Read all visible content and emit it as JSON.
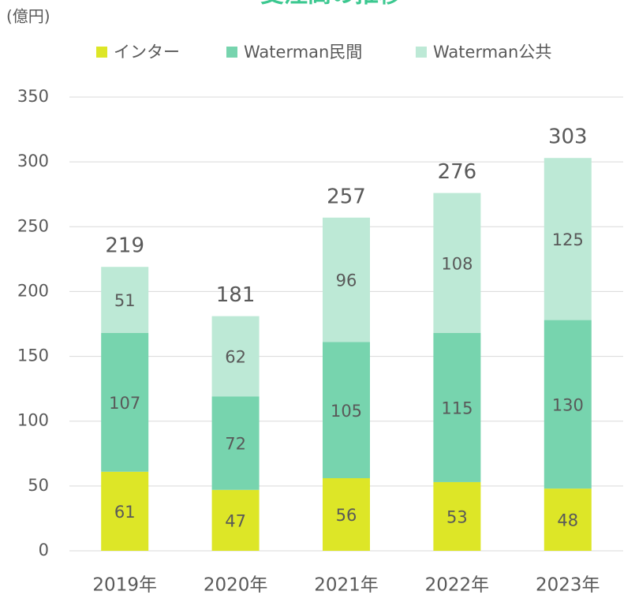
{
  "chart_data": {
    "type": "stacked_bar",
    "title": "受注高の推移",
    "y_unit_label": "(億円)",
    "categories": [
      "2019年",
      "2020年",
      "2021年",
      "2022年",
      "2023年"
    ],
    "series": [
      {
        "name": "インター",
        "color": "#dde627",
        "values": [
          61,
          47,
          56,
          53,
          48
        ]
      },
      {
        "name": "Waterman民間",
        "color": "#77d4ae",
        "values": [
          107,
          72,
          105,
          115,
          130
        ]
      },
      {
        "name": "Waterman公共",
        "color": "#bde9d6",
        "values": [
          51,
          62,
          96,
          108,
          125
        ]
      }
    ],
    "totals": [
      219,
      181,
      257,
      276,
      303
    ],
    "ylim": [
      0,
      350
    ],
    "yticks": [
      0,
      50,
      100,
      150,
      200,
      250,
      300,
      350
    ],
    "grid": true,
    "legend": "top"
  }
}
